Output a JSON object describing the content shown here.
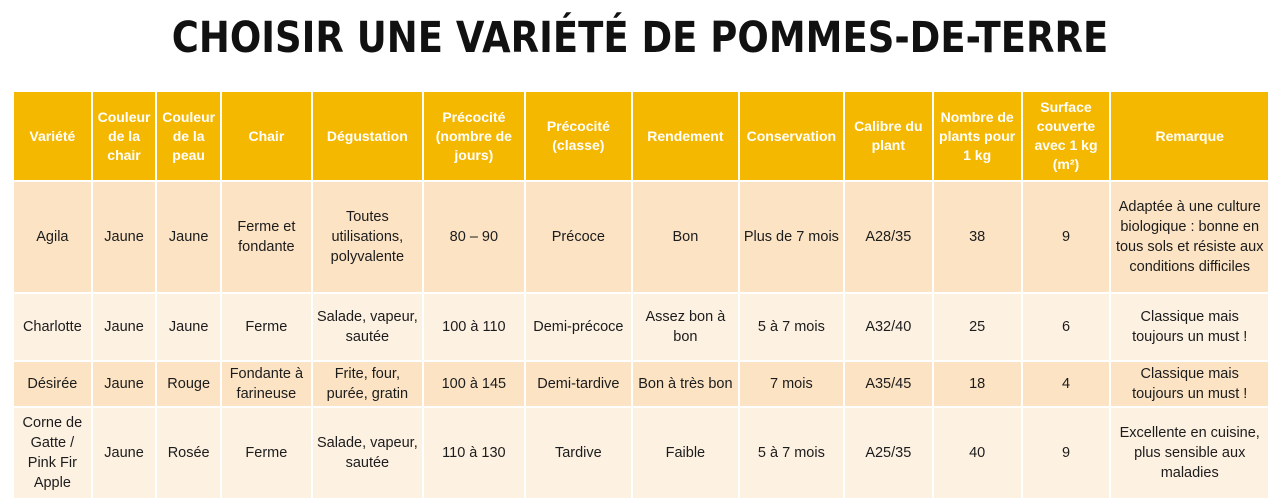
{
  "title": "CHOISIR UNE VARIÉTÉ DE POMMES-DE-TERRE",
  "colors": {
    "header_bg": "#f5b800",
    "header_text": "#ffffff",
    "row_dark": "#fbe3c4",
    "row_light": "#fdf1e2"
  },
  "table": {
    "headers": [
      "Variété",
      "Couleur de la chair",
      "Couleur de la peau",
      "Chair",
      "Dégustation",
      "Précocité (nombre de jours)",
      "Précocité (classe)",
      "Rendement",
      "Conservation",
      "Calibre du plant",
      "Nombre de plants pour 1 kg",
      "Surface couverte avec 1 kg (m²)",
      "Remarque"
    ],
    "rows": [
      [
        "Agila",
        "Jaune",
        "Jaune",
        "Ferme et fondante",
        "Toutes utilisations, polyvalente",
        "80 – 90",
        "Précoce",
        "Bon",
        "Plus de 7 mois",
        "A28/35",
        "38",
        "9",
        "Adaptée à une culture biologique : bonne en tous sols et résiste aux conditions difficiles"
      ],
      [
        "Charlotte",
        "Jaune",
        "Jaune",
        "Ferme",
        "Salade, vapeur, sautée",
        "100 à 110",
        "Demi-précoce",
        "Assez bon à bon",
        "5 à 7 mois",
        "A32/40",
        "25",
        "6",
        "Classique mais toujours un must !"
      ],
      [
        "Désirée",
        "Jaune",
        "Rouge",
        "Fondante à farineuse",
        "Frite, four, purée, gratin",
        "100 à 145",
        "Demi-tardive",
        "Bon à très bon",
        "7 mois",
        "A35/45",
        "18",
        "4",
        "Classique mais toujours un must !"
      ],
      [
        "Corne de Gatte / Pink Fir Apple",
        "Jaune",
        "Rosée",
        "Ferme",
        "Salade, vapeur, sautée",
        "110 à 130",
        "Tardive",
        "Faible",
        "5 à 7 mois",
        "A25/35",
        "40",
        "9",
        "Excellente en cuisine, plus sensible aux maladies"
      ]
    ]
  }
}
